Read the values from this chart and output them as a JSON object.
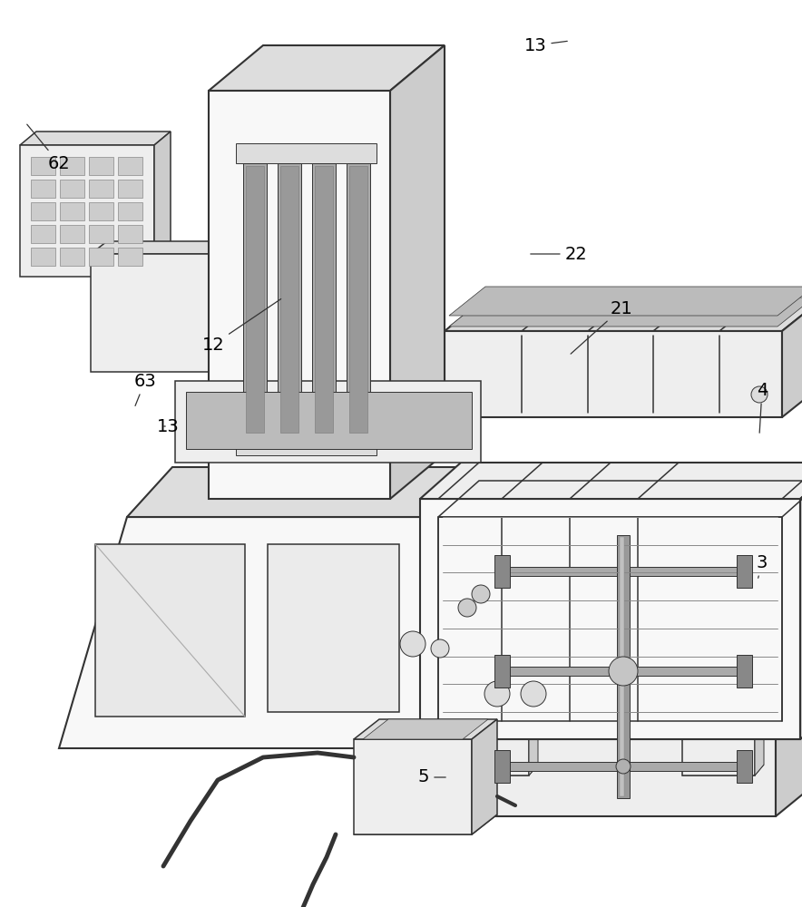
{
  "bg_color": "#ffffff",
  "lc": "#333333",
  "lc_light": "#666666",
  "fc_white": "#f8f8f8",
  "fc_light": "#eeeeee",
  "fc_mid": "#dddddd",
  "fc_dark": "#cccccc",
  "fc_darker": "#bbbbbb",
  "fc_slot": "#aaaaaa",
  "lw_thick": 1.5,
  "lw_med": 1.1,
  "lw_thin": 0.7
}
